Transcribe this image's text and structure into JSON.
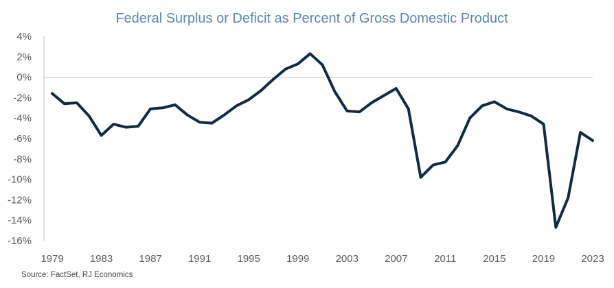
{
  "chart_data": {
    "type": "line",
    "title": "Federal Surplus or Deficit as Percent of Gross Domestic Product",
    "source": "Source: FactSet, RJ Economics",
    "xlim": [
      1979,
      2023
    ],
    "ylim": [
      -16,
      4
    ],
    "y_ticks": [
      4,
      2,
      0,
      -2,
      -4,
      -6,
      -8,
      -10,
      -12,
      -14,
      -16
    ],
    "y_tick_labels": [
      "4%",
      "2%",
      "0%",
      "-2%",
      "-4%",
      "-6%",
      "-8%",
      "-10%",
      "-12%",
      "-14%",
      "-16%"
    ],
    "x_ticks": [
      1979,
      1983,
      1987,
      1991,
      1995,
      1999,
      2003,
      2007,
      2011,
      2015,
      2019,
      2023
    ],
    "x_tick_labels": [
      "1979",
      "1983",
      "1987",
      "1991",
      "1995",
      "1999",
      "2003",
      "2007",
      "2011",
      "2015",
      "2019",
      "2023"
    ],
    "grid": false,
    "line_color": "#0f2a44",
    "title_color": "#5b86b0",
    "series": [
      {
        "x": [
          1979,
          1980,
          1981,
          1982,
          1983,
          1984,
          1985,
          1986,
          1987,
          1988,
          1989,
          1990,
          1991,
          1992,
          1993,
          1994,
          1995,
          1996,
          1997,
          1998,
          1999,
          2000,
          2001,
          2002,
          2003,
          2004,
          2005,
          2006,
          2007,
          2008,
          2009,
          2010,
          2011,
          2012,
          2013,
          2014,
          2015,
          2016,
          2017,
          2018,
          2019,
          2020,
          2021,
          2022,
          2023
        ],
        "values": [
          -1.6,
          -2.6,
          -2.5,
          -3.8,
          -5.7,
          -4.6,
          -4.9,
          -4.8,
          -3.1,
          -3.0,
          -2.7,
          -3.7,
          -4.4,
          -4.5,
          -3.7,
          -2.8,
          -2.2,
          -1.3,
          -0.2,
          0.8,
          1.3,
          2.3,
          1.2,
          -1.4,
          -3.3,
          -3.4,
          -2.5,
          -1.8,
          -1.1,
          -3.1,
          -9.8,
          -8.6,
          -8.3,
          -6.7,
          -4.0,
          -2.8,
          -2.4,
          -3.1,
          -3.4,
          -3.8,
          -4.6,
          -14.7,
          -11.8,
          -5.4,
          -6.2
        ]
      }
    ]
  }
}
